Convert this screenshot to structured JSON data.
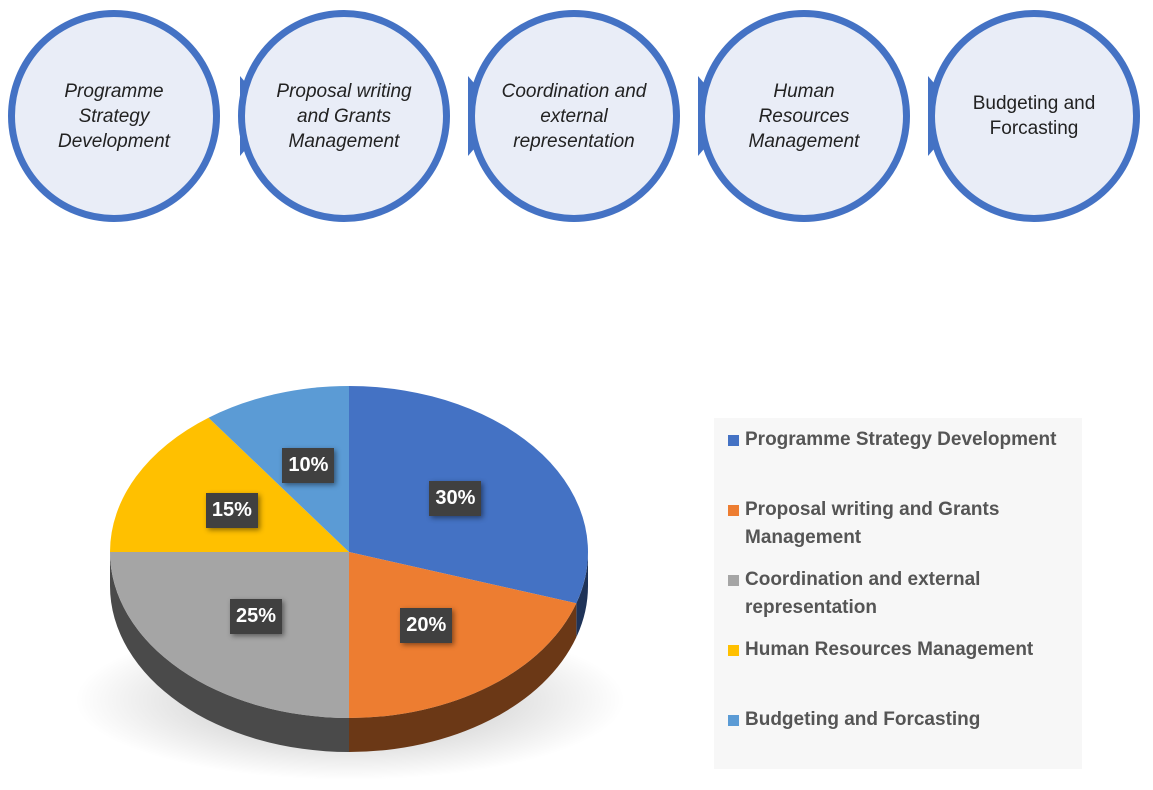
{
  "process": {
    "steps": [
      {
        "label": "Programme Strategy Development",
        "italic": true
      },
      {
        "label": "Proposal writing and Grants Management",
        "italic": true
      },
      {
        "label": "Coordination and external representation",
        "italic": true
      },
      {
        "label": "Human Resources Management",
        "italic": true
      },
      {
        "label": "Budgeting and Forcasting",
        "italic": false
      }
    ]
  },
  "colors": {
    "accent": "#4472c4",
    "circle_fill": "#e9edf7"
  },
  "chart_data": {
    "type": "pie",
    "title": "",
    "categories": [
      "Programme Strategy Development",
      "Proposal writing and Grants Management",
      "Coordination and external representation",
      "Human Resources Management",
      "Budgeting and Forcasting"
    ],
    "values": [
      30,
      20,
      25,
      15,
      10
    ],
    "data_labels": [
      "30%",
      "20%",
      "25%",
      "15%",
      "10%"
    ],
    "colors": [
      "#4472c4",
      "#ed7d31",
      "#a5a5a5",
      "#ffc000",
      "#5b9bd5"
    ],
    "legend": [
      "Programme Strategy Development",
      "Proposal writing and Grants Management",
      "Coordination and external representation",
      "Human Resources Management",
      "Budgeting and Forcasting"
    ],
    "legend_position": "right",
    "style": "3d"
  }
}
